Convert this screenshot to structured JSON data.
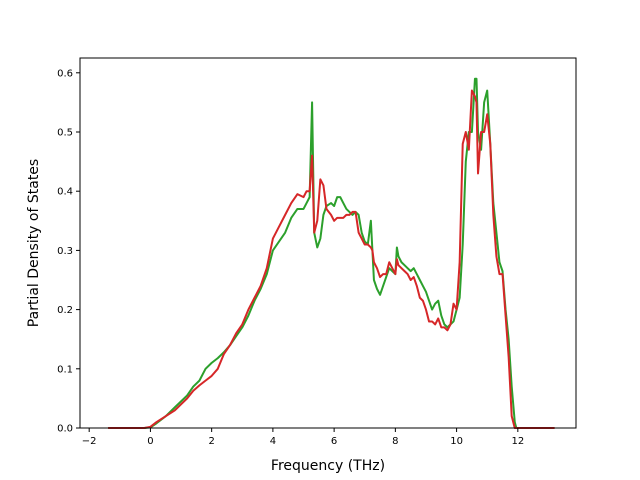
{
  "chart_data": {
    "type": "line",
    "xlabel": "Frequency (THz)",
    "ylabel": "Partial Density of States",
    "xlim": [
      -2.3,
      13.9
    ],
    "ylim": [
      0,
      0.625
    ],
    "x_ticks": [
      -2,
      0,
      2,
      4,
      6,
      8,
      10,
      12
    ],
    "y_ticks": [
      0.0,
      0.1,
      0.2,
      0.3,
      0.4,
      0.5,
      0.6
    ],
    "x_tick_labels": [
      "−2",
      "0",
      "2",
      "4",
      "6",
      "8",
      "10",
      "12"
    ],
    "y_tick_labels": [
      "0.0",
      "0.1",
      "0.2",
      "0.3",
      "0.4",
      "0.5",
      "0.6"
    ],
    "grid": false,
    "series": [
      {
        "color": "#2ca02c",
        "x": [
          -1.38,
          -0.2,
          0,
          0.2,
          0.5,
          0.8,
          1.0,
          1.2,
          1.4,
          1.6,
          1.8,
          2.0,
          2.2,
          2.4,
          2.6,
          2.8,
          3.0,
          3.2,
          3.4,
          3.6,
          3.8,
          4.0,
          4.2,
          4.4,
          4.6,
          4.8,
          5.0,
          5.1,
          5.2,
          5.28,
          5.35,
          5.45,
          5.55,
          5.65,
          5.75,
          5.9,
          6.0,
          6.1,
          6.2,
          6.3,
          6.4,
          6.5,
          6.6,
          6.7,
          6.8,
          6.9,
          7.0,
          7.1,
          7.2,
          7.25,
          7.3,
          7.4,
          7.5,
          7.6,
          7.7,
          7.8,
          7.9,
          8.0,
          8.05,
          8.1,
          8.2,
          8.3,
          8.4,
          8.5,
          8.6,
          8.7,
          8.8,
          8.9,
          9.0,
          9.1,
          9.2,
          9.3,
          9.4,
          9.5,
          9.6,
          9.7,
          9.8,
          9.9,
          10.0,
          10.1,
          10.2,
          10.3,
          10.4,
          10.5,
          10.6,
          10.65,
          10.7,
          10.8,
          10.9,
          11.0,
          11.1,
          11.2,
          11.3,
          11.4,
          11.5,
          11.6,
          11.7,
          11.8,
          11.9,
          11.95,
          12.0,
          12.2,
          13.2
        ],
        "y": [
          0.0,
          0.0,
          0.001,
          0.008,
          0.02,
          0.035,
          0.045,
          0.055,
          0.07,
          0.08,
          0.1,
          0.11,
          0.118,
          0.128,
          0.14,
          0.155,
          0.17,
          0.19,
          0.215,
          0.235,
          0.26,
          0.3,
          0.315,
          0.33,
          0.355,
          0.37,
          0.37,
          0.38,
          0.39,
          0.55,
          0.33,
          0.305,
          0.32,
          0.36,
          0.375,
          0.38,
          0.375,
          0.39,
          0.39,
          0.38,
          0.37,
          0.365,
          0.36,
          0.365,
          0.36,
          0.33,
          0.315,
          0.31,
          0.35,
          0.3,
          0.25,
          0.235,
          0.225,
          0.24,
          0.255,
          0.27,
          0.265,
          0.26,
          0.305,
          0.29,
          0.28,
          0.275,
          0.27,
          0.265,
          0.27,
          0.26,
          0.25,
          0.24,
          0.23,
          0.215,
          0.2,
          0.21,
          0.215,
          0.19,
          0.175,
          0.17,
          0.175,
          0.18,
          0.2,
          0.22,
          0.31,
          0.45,
          0.5,
          0.5,
          0.59,
          0.59,
          0.5,
          0.47,
          0.55,
          0.57,
          0.48,
          0.38,
          0.33,
          0.28,
          0.265,
          0.2,
          0.15,
          0.07,
          0.01,
          0.0,
          0.0,
          0.0,
          0.0
        ]
      },
      {
        "color": "#d62728",
        "x": [
          -1.38,
          -0.2,
          0,
          0.2,
          0.5,
          0.8,
          1.0,
          1.2,
          1.4,
          1.6,
          1.8,
          2.0,
          2.2,
          2.4,
          2.6,
          2.8,
          3.0,
          3.2,
          3.4,
          3.6,
          3.8,
          4.0,
          4.2,
          4.4,
          4.6,
          4.8,
          5.0,
          5.1,
          5.2,
          5.28,
          5.35,
          5.45,
          5.55,
          5.65,
          5.75,
          5.9,
          6.0,
          6.1,
          6.2,
          6.3,
          6.4,
          6.5,
          6.6,
          6.7,
          6.8,
          6.9,
          7.0,
          7.1,
          7.2,
          7.25,
          7.3,
          7.4,
          7.5,
          7.6,
          7.7,
          7.8,
          7.9,
          8.0,
          8.05,
          8.1,
          8.2,
          8.3,
          8.4,
          8.5,
          8.6,
          8.7,
          8.8,
          8.9,
          9.0,
          9.1,
          9.2,
          9.3,
          9.4,
          9.5,
          9.6,
          9.7,
          9.8,
          9.9,
          10.0,
          10.1,
          10.2,
          10.3,
          10.4,
          10.5,
          10.6,
          10.65,
          10.7,
          10.8,
          10.9,
          11.0,
          11.1,
          11.2,
          11.3,
          11.4,
          11.5,
          11.6,
          11.7,
          11.8,
          11.9,
          11.95,
          12.0,
          12.2,
          13.2
        ],
        "y": [
          0.0,
          0.0,
          0.002,
          0.01,
          0.02,
          0.03,
          0.04,
          0.05,
          0.063,
          0.072,
          0.08,
          0.088,
          0.1,
          0.125,
          0.14,
          0.16,
          0.175,
          0.2,
          0.22,
          0.24,
          0.27,
          0.32,
          0.34,
          0.36,
          0.38,
          0.395,
          0.39,
          0.4,
          0.4,
          0.46,
          0.33,
          0.35,
          0.42,
          0.41,
          0.37,
          0.36,
          0.35,
          0.355,
          0.355,
          0.355,
          0.36,
          0.36,
          0.365,
          0.365,
          0.33,
          0.32,
          0.31,
          0.31,
          0.305,
          0.3,
          0.28,
          0.27,
          0.255,
          0.26,
          0.26,
          0.28,
          0.27,
          0.26,
          0.285,
          0.275,
          0.27,
          0.265,
          0.26,
          0.25,
          0.255,
          0.24,
          0.22,
          0.215,
          0.2,
          0.18,
          0.18,
          0.175,
          0.185,
          0.17,
          0.17,
          0.165,
          0.175,
          0.21,
          0.2,
          0.28,
          0.48,
          0.5,
          0.47,
          0.57,
          0.56,
          0.55,
          0.43,
          0.5,
          0.5,
          0.53,
          0.48,
          0.36,
          0.29,
          0.26,
          0.26,
          0.19,
          0.12,
          0.02,
          0.0,
          0.0,
          0.0,
          0.0,
          0.0
        ]
      }
    ]
  }
}
